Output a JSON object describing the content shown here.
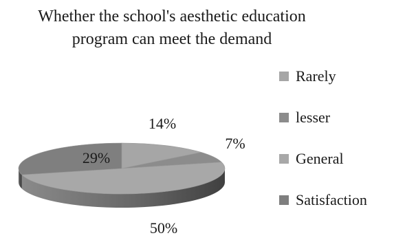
{
  "chart_data": {
    "type": "pie",
    "title_lines": [
      "Whether the school's aesthetic education",
      "program can meet the demand"
    ],
    "categories": [
      "Rarely",
      "lesser",
      "General",
      "Satisfaction"
    ],
    "values": [
      14,
      7,
      50,
      29
    ],
    "labels": [
      "14%",
      "7%",
      "50%",
      "29%"
    ],
    "colors": [
      "#a6a6a6",
      "#8c8c8c",
      "#a8a8a8",
      "#7f7f7f"
    ],
    "legend_position": "right",
    "style": "3d-pie"
  }
}
